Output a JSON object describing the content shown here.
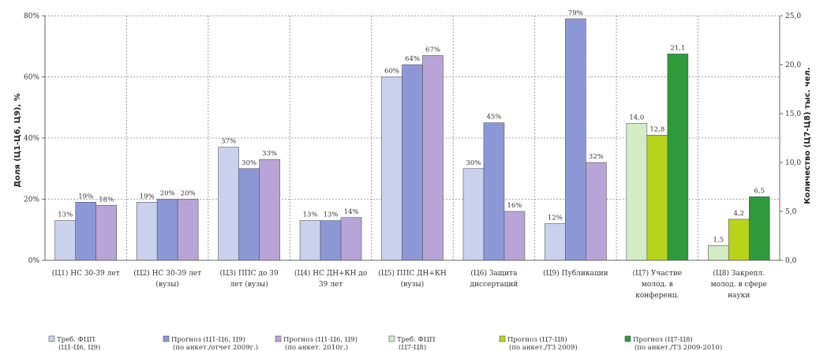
{
  "chart_data": {
    "type": "bar",
    "ylabel_left": "Доля (Ц1-Ц6, Ц9), %",
    "ylabel_right": "Количество (Ц7-Ц8) тыс. чел.",
    "y_left_ticks": [
      "0%",
      "20%",
      "40%",
      "60%",
      "80%"
    ],
    "y_right_ticks": [
      "0,0",
      "5,0",
      "10,0",
      "15,0",
      "20,0",
      "25,0"
    ],
    "ylim_left": [
      0,
      80
    ],
    "ylim_right": [
      0,
      25
    ],
    "grid": true,
    "legend_position": "bottom",
    "categories": [
      [
        "(Ц1) НС 30-39 лет"
      ],
      [
        "(Ц2) НС 30-39 лет",
        "(вузы)"
      ],
      [
        "(Ц3) ППС до 39",
        "лет (вузы)"
      ],
      [
        "(Ц4) НС ДН+КН до",
        "39 лет"
      ],
      [
        "(Ц5) ППС ДН+КН",
        "(вузы)"
      ],
      [
        "(Ц6) Защита",
        "диссертаций"
      ],
      [
        "(Ц9) Публикации"
      ],
      [
        "(Ц7) Участие",
        "молод. в",
        "конференц."
      ],
      [
        "(Ц8) Закрепл.",
        "молод. в сфере",
        "науки"
      ]
    ],
    "series_left": [
      {
        "values": [
          13,
          19,
          37,
          13,
          60,
          30,
          12
        ],
        "labels": [
          "13%",
          "19%",
          "37%",
          "13%",
          "60%",
          "30%",
          "12%"
        ],
        "color": "#c9d1ec"
      },
      {
        "values": [
          19,
          20,
          30,
          13,
          64,
          45,
          79
        ],
        "labels": [
          "19%",
          "20%",
          "30%",
          "13%",
          "64%",
          "45%",
          "79%"
        ],
        "color": "#8c98d6"
      },
      {
        "values": [
          18,
          20,
          33,
          14,
          67,
          16,
          32
        ],
        "labels": [
          "18%",
          "20%",
          "33%",
          "14%",
          "67%",
          "16%",
          "32%"
        ],
        "color": "#b8a4d6"
      }
    ],
    "series_right": [
      {
        "values": [
          14.0,
          1.5
        ],
        "labels": [
          "14,0",
          "1,5"
        ],
        "color": "#d4ecc6"
      },
      {
        "values": [
          12.8,
          4.2
        ],
        "labels": [
          "12,8",
          "4,2"
        ],
        "color": "#b8d41a"
      },
      {
        "values": [
          21.1,
          6.5
        ],
        "labels": [
          "21,1",
          "6,5"
        ],
        "color": "#2e9a3a"
      }
    ],
    "legend": [
      {
        "line1": "Треб. ФЦП",
        "line2": "(Ц1-Ц6, Ц9)",
        "color": "#c9d1ec"
      },
      {
        "line1": "Прогноз (Ц1-Ц6, Ц9)",
        "line2": "(по анкет./отчет 2009г.)",
        "color": "#8c98d6"
      },
      {
        "line1": "Прогноз (Ц1-Ц6, Ц9)",
        "line2": "(по анкет. 2010г.)",
        "color": "#b8a4d6"
      },
      {
        "line1": "Треб. ФЦП",
        "line2": "(Ц7-Ц8)",
        "color": "#d4ecc6"
      },
      {
        "line1": "Прогноз (Ц7-Ц8)",
        "line2": "(по анкет./ТЗ 2009)",
        "color": "#b8d41a"
      },
      {
        "line1": "Прогноз (Ц7-Ц8)",
        "line2": "(по анкет./ТЗ 2009-2010)",
        "color": "#2e9a3a"
      }
    ]
  }
}
